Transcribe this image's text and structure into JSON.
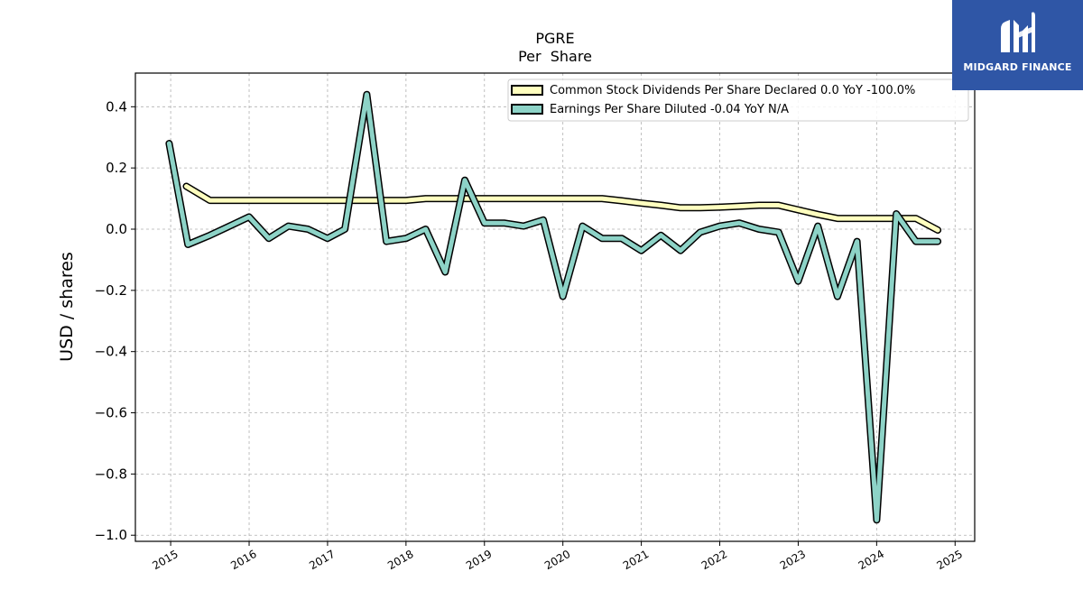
{
  "brand": {
    "name": "MIDGARD FINANCE",
    "logo_icon": "midgard-mh-monogram-icon",
    "color": "#2f56a6"
  },
  "chart_data": {
    "type": "line",
    "title": "PGRE",
    "subtitle": "Per  Share",
    "xlabel": "",
    "ylabel": "USD / shares",
    "xlim": [
      2014.55,
      2025.25
    ],
    "ylim": [
      -1.02,
      0.51
    ],
    "x_ticks": [
      2015,
      2016,
      2017,
      2018,
      2019,
      2020,
      2021,
      2022,
      2023,
      2024,
      2025
    ],
    "x_tick_labels": [
      "2015",
      "2016",
      "2017",
      "2018",
      "2019",
      "2020",
      "2021",
      "2022",
      "2023",
      "2024",
      "2025"
    ],
    "y_ticks": [
      0.4,
      0.2,
      0.0,
      -0.2,
      -0.4,
      -0.6,
      -0.8,
      -1.0
    ],
    "y_tick_labels": [
      "0.4",
      "0.2",
      "0.0",
      "−0.2",
      "−0.4",
      "−0.6",
      "−0.8",
      "−1.0"
    ],
    "grid": true,
    "legend_position": "top-right",
    "series": [
      {
        "name": "Common Stock Dividends Per Share Declared  0.0 YoY -100.0%",
        "color": "#ffffbf",
        "x": [
          2015.2,
          2015.5,
          2015.75,
          2016.0,
          2016.25,
          2016.5,
          2016.75,
          2017.0,
          2017.25,
          2017.5,
          2017.75,
          2018.0,
          2018.25,
          2018.5,
          2018.75,
          2019.0,
          2019.25,
          2019.5,
          2019.75,
          2020.0,
          2020.25,
          2020.5,
          2020.75,
          2021.0,
          2021.25,
          2021.5,
          2021.75,
          2022.0,
          2022.25,
          2022.5,
          2022.75,
          2023.0,
          2023.25,
          2023.5,
          2023.75,
          2024.0,
          2024.25,
          2024.5,
          2024.78
        ],
        "values": [
          0.14,
          0.094,
          0.094,
          0.094,
          0.094,
          0.094,
          0.094,
          0.094,
          0.094,
          0.094,
          0.094,
          0.094,
          0.1,
          0.1,
          0.1,
          0.1,
          0.1,
          0.1,
          0.1,
          0.1,
          0.1,
          0.1,
          0.093,
          0.085,
          0.078,
          0.07,
          0.07,
          0.072,
          0.075,
          0.078,
          0.078,
          0.063,
          0.048,
          0.035,
          0.035,
          0.035,
          0.035,
          0.035,
          -0.003
        ]
      },
      {
        "name": "Earnings Per Share Diluted  -0.04 YoY N/A",
        "color": "#8dd3c7",
        "x": [
          2014.98,
          2015.22,
          2015.5,
          2015.75,
          2016.0,
          2016.25,
          2016.5,
          2016.75,
          2017.0,
          2017.22,
          2017.5,
          2017.75,
          2018.0,
          2018.25,
          2018.5,
          2018.75,
          2019.0,
          2019.25,
          2019.5,
          2019.75,
          2020.0,
          2020.25,
          2020.5,
          2020.75,
          2021.0,
          2021.25,
          2021.5,
          2021.75,
          2022.0,
          2022.25,
          2022.5,
          2022.75,
          2023.0,
          2023.25,
          2023.5,
          2023.75,
          2024.0,
          2024.25,
          2024.5,
          2024.78
        ],
        "values": [
          0.28,
          -0.05,
          -0.02,
          0.01,
          0.04,
          -0.03,
          0.01,
          0.0,
          -0.03,
          0.0,
          0.44,
          -0.04,
          -0.03,
          0.0,
          -0.14,
          0.16,
          0.02,
          0.02,
          0.01,
          0.03,
          -0.22,
          0.01,
          -0.03,
          -0.03,
          -0.07,
          -0.02,
          -0.07,
          -0.01,
          0.01,
          0.02,
          0.0,
          -0.01,
          -0.17,
          0.01,
          -0.22,
          -0.04,
          -0.95,
          0.05,
          -0.04,
          -0.04
        ]
      }
    ]
  }
}
